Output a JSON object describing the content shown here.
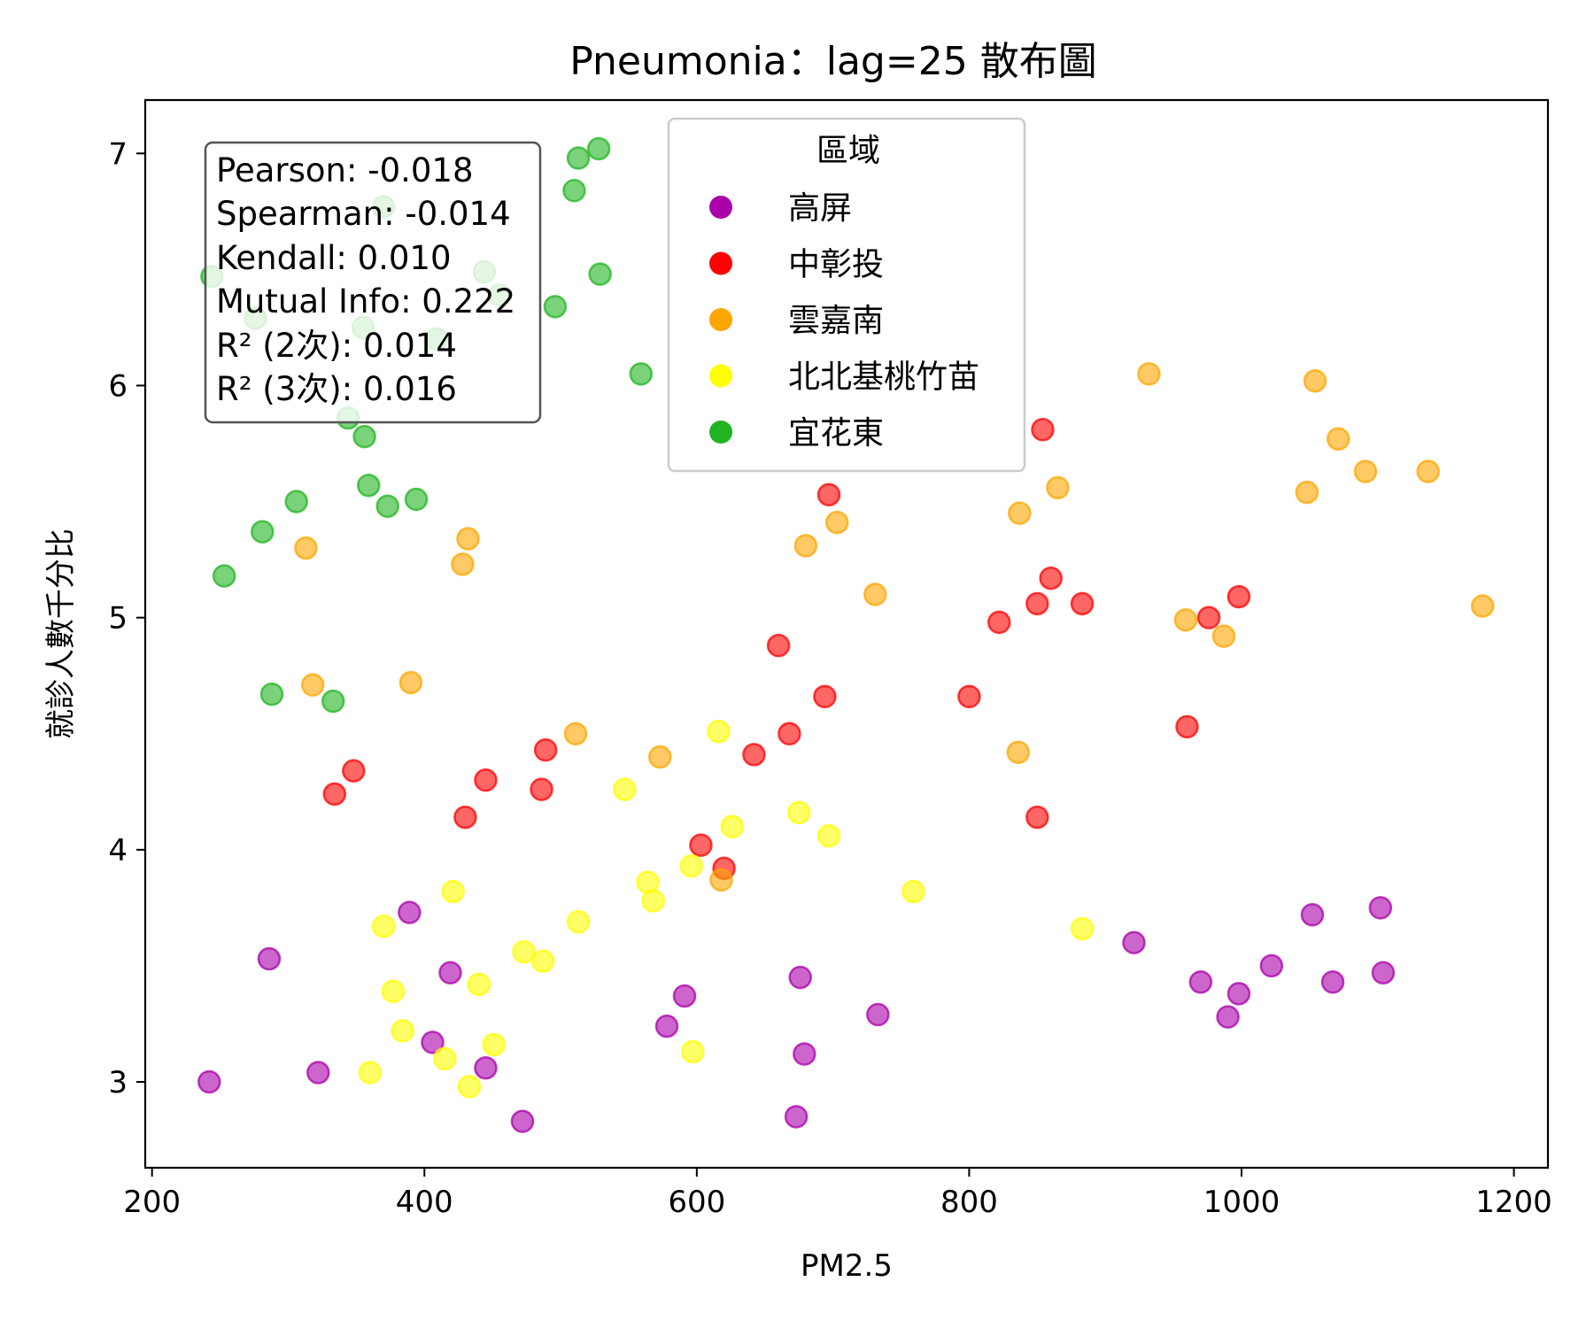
{
  "chart_data": {
    "type": "scatter",
    "title": "Pneumonia：lag=25 散布圖",
    "xlabel": "PM2.5",
    "ylabel": "就診人數千分比",
    "xlim": [
      195,
      1225
    ],
    "ylim": [
      2.63,
      7.23
    ],
    "xticks": [
      200,
      400,
      600,
      800,
      1000,
      1200
    ],
    "yticks": [
      3,
      4,
      5,
      6,
      7
    ],
    "grid": false,
    "legend": {
      "title": "區域",
      "placement": "top-center"
    },
    "stats": [
      "Pearson: -0.018",
      "Spearman: -0.014",
      "Kendall: 0.010",
      "Mutual Info: 0.222",
      "R² (2次): 0.014",
      "R² (3次): 0.016"
    ],
    "series": [
      {
        "name": "高屏",
        "color": "#aa00aa",
        "points": [
          [
            242,
            3.0
          ],
          [
            286,
            3.53
          ],
          [
            322,
            3.04
          ],
          [
            389,
            3.73
          ],
          [
            406,
            3.17
          ],
          [
            419,
            3.47
          ],
          [
            445,
            3.06
          ],
          [
            472,
            2.83
          ],
          [
            578,
            3.24
          ],
          [
            591,
            3.37
          ],
          [
            673,
            2.85
          ],
          [
            676,
            3.45
          ],
          [
            679,
            3.12
          ],
          [
            733,
            3.29
          ],
          [
            921,
            3.6
          ],
          [
            970,
            3.43
          ],
          [
            990,
            3.28
          ],
          [
            998,
            3.38
          ],
          [
            1022,
            3.5
          ],
          [
            1052,
            3.72
          ],
          [
            1067,
            3.43
          ],
          [
            1102,
            3.75
          ],
          [
            1104,
            3.47
          ]
        ]
      },
      {
        "name": "中彰投",
        "color": "#ff0000",
        "points": [
          [
            334,
            4.24
          ],
          [
            348,
            4.34
          ],
          [
            430,
            4.14
          ],
          [
            445,
            4.3
          ],
          [
            486,
            4.26
          ],
          [
            489,
            4.43
          ],
          [
            603,
            4.02
          ],
          [
            620,
            3.92
          ],
          [
            642,
            4.41
          ],
          [
            660,
            4.88
          ],
          [
            668,
            4.5
          ],
          [
            694,
            4.66
          ],
          [
            697,
            5.53
          ],
          [
            800,
            4.66
          ],
          [
            822,
            4.98
          ],
          [
            850,
            5.06
          ],
          [
            854,
            5.81
          ],
          [
            860,
            5.17
          ],
          [
            883,
            5.06
          ],
          [
            960,
            4.53
          ],
          [
            976,
            5.0
          ],
          [
            998,
            5.09
          ],
          [
            850,
            4.14
          ]
        ]
      },
      {
        "name": "雲嘉南",
        "color": "#ffa500",
        "points": [
          [
            313,
            5.3
          ],
          [
            318,
            4.71
          ],
          [
            390,
            4.72
          ],
          [
            428,
            5.23
          ],
          [
            432,
            5.34
          ],
          [
            511,
            4.5
          ],
          [
            573,
            4.4
          ],
          [
            618,
            3.87
          ],
          [
            680,
            5.31
          ],
          [
            703,
            5.41
          ],
          [
            731,
            5.1
          ],
          [
            836,
            4.42
          ],
          [
            837,
            5.45
          ],
          [
            865,
            5.56
          ],
          [
            932,
            6.05
          ],
          [
            959,
            4.99
          ],
          [
            987,
            4.92
          ],
          [
            1048,
            5.54
          ],
          [
            1054,
            6.02
          ],
          [
            1071,
            5.77
          ],
          [
            1091,
            5.63
          ],
          [
            1137,
            5.63
          ],
          [
            1177,
            5.05
          ]
        ]
      },
      {
        "name": "北北基桃竹苗",
        "color": "#ffff00",
        "points": [
          [
            360,
            3.04
          ],
          [
            370,
            3.67
          ],
          [
            377,
            3.39
          ],
          [
            384,
            3.22
          ],
          [
            415,
            3.1
          ],
          [
            421,
            3.82
          ],
          [
            433,
            2.98
          ],
          [
            440,
            3.42
          ],
          [
            451,
            3.16
          ],
          [
            473,
            3.56
          ],
          [
            487,
            3.52
          ],
          [
            513,
            3.69
          ],
          [
            547,
            4.26
          ],
          [
            564,
            3.86
          ],
          [
            568,
            3.78
          ],
          [
            596,
            3.93
          ],
          [
            597,
            3.13
          ],
          [
            616,
            4.51
          ],
          [
            626,
            4.1
          ],
          [
            675,
            4.16
          ],
          [
            697,
            4.06
          ],
          [
            759,
            3.82
          ],
          [
            883,
            3.66
          ]
        ]
      },
      {
        "name": "宜花東",
        "color": "#22b422",
        "points": [
          [
            244,
            6.47
          ],
          [
            253,
            5.18
          ],
          [
            276,
            6.29
          ],
          [
            281,
            5.37
          ],
          [
            288,
            4.67
          ],
          [
            306,
            5.5
          ],
          [
            333,
            4.64
          ],
          [
            344,
            5.86
          ],
          [
            355,
            6.25
          ],
          [
            356,
            5.78
          ],
          [
            359,
            5.57
          ],
          [
            370,
            6.77
          ],
          [
            373,
            5.48
          ],
          [
            394,
            5.51
          ],
          [
            409,
            6.2
          ],
          [
            444,
            6.49
          ],
          [
            455,
            6.39
          ],
          [
            496,
            6.34
          ],
          [
            510,
            6.84
          ],
          [
            513,
            6.98
          ],
          [
            528,
            7.02
          ],
          [
            529,
            6.48
          ],
          [
            559,
            6.05
          ]
        ]
      }
    ]
  }
}
